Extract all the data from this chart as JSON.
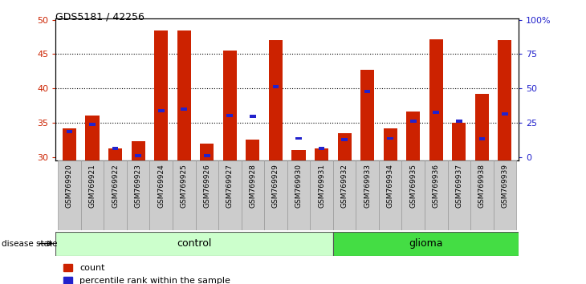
{
  "title": "GDS5181 / 42256",
  "samples": [
    "GSM769920",
    "GSM769921",
    "GSM769922",
    "GSM769923",
    "GSM769924",
    "GSM769925",
    "GSM769926",
    "GSM769927",
    "GSM769928",
    "GSM769929",
    "GSM769930",
    "GSM769931",
    "GSM769932",
    "GSM769933",
    "GSM769934",
    "GSM769935",
    "GSM769936",
    "GSM769937",
    "GSM769938",
    "GSM769939"
  ],
  "count_values": [
    34.2,
    36.0,
    31.2,
    32.3,
    48.4,
    48.5,
    32.0,
    45.5,
    32.5,
    47.0,
    31.0,
    31.2,
    33.5,
    42.7,
    34.2,
    36.6,
    47.2,
    35.0,
    39.2,
    47.1
  ],
  "percentile_values": [
    33.5,
    34.5,
    31.0,
    30.0,
    36.5,
    36.8,
    30.0,
    35.8,
    35.7,
    40.0,
    32.5,
    31.0,
    32.3,
    39.3,
    32.5,
    35.0,
    36.3,
    35.0,
    32.4,
    36.1
  ],
  "control_count": 12,
  "glioma_count": 8,
  "ymin": 29.5,
  "ymax": 50.2,
  "yticks": [
    30,
    35,
    40,
    45,
    50
  ],
  "bar_color": "#cc2200",
  "percentile_color": "#2222cc",
  "bg_color": "#ffffff",
  "axis_label_color_left": "#cc2200",
  "axis_label_color_right": "#2222cc",
  "control_bg": "#ccffcc",
  "glioma_bg": "#44dd44",
  "sample_label_bg": "#cccccc",
  "right_ytick_labels": [
    "100%",
    "75",
    "50",
    "25",
    "0"
  ],
  "right_ytick_positions": [
    50,
    45,
    40,
    35,
    30
  ]
}
